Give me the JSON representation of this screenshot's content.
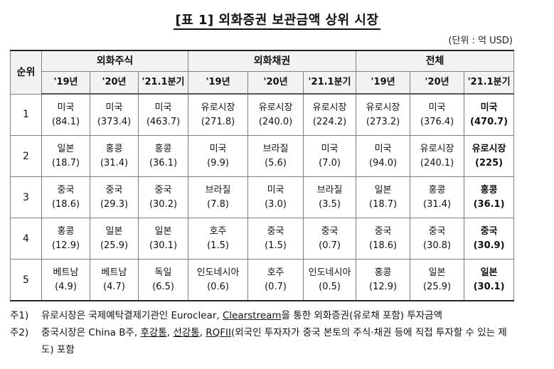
{
  "title": "[표 1] 외화증권 보관금액 상위 시장",
  "unit": "(단위 : 억 USD)",
  "table": {
    "rank_header": "순위",
    "groups": [
      "외화주식",
      "외화채권",
      "전체"
    ],
    "years": [
      "'19년",
      "'20년",
      "'21.1분기",
      "'19년",
      "'20년",
      "'21.1분기",
      "'19년",
      "'20년",
      "'21.1분기"
    ],
    "rows": [
      {
        "rank": "1",
        "cells": [
          {
            "name": "미국",
            "value": "(84.1)"
          },
          {
            "name": "미국",
            "value": "(373.4)"
          },
          {
            "name": "미국",
            "value": "(463.7)"
          },
          {
            "name": "유로시장",
            "value": "(271.8)"
          },
          {
            "name": "유로시장",
            "value": "(240.0)"
          },
          {
            "name": "유로시장",
            "value": "(224.2)"
          },
          {
            "name": "유로시장",
            "value": "(273.2)"
          },
          {
            "name": "미국",
            "value": "(376.4)"
          },
          {
            "name": "미국",
            "value": "(470.7)"
          }
        ]
      },
      {
        "rank": "2",
        "cells": [
          {
            "name": "일본",
            "value": "(18.7)"
          },
          {
            "name": "홍콩",
            "value": "(31.4)"
          },
          {
            "name": "홍콩",
            "value": "(36.1)"
          },
          {
            "name": "미국",
            "value": "(9.9)"
          },
          {
            "name": "브라질",
            "value": "(5.6)"
          },
          {
            "name": "미국",
            "value": "(7.0)"
          },
          {
            "name": "미국",
            "value": "(94.0)"
          },
          {
            "name": "유로시장",
            "value": "(240.1)"
          },
          {
            "name": "유로시장",
            "value": "(225)"
          }
        ]
      },
      {
        "rank": "3",
        "cells": [
          {
            "name": "중국",
            "value": "(18.6)"
          },
          {
            "name": "중국",
            "value": "(29.3)"
          },
          {
            "name": "중국",
            "value": "(30.2)"
          },
          {
            "name": "브라질",
            "value": "(7.8)"
          },
          {
            "name": "미국",
            "value": "(3.0)"
          },
          {
            "name": "브라질",
            "value": "(3.5)"
          },
          {
            "name": "일본",
            "value": "(18.7)"
          },
          {
            "name": "홍콩",
            "value": "(31.4)"
          },
          {
            "name": "홍콩",
            "value": "(36.1)"
          }
        ]
      },
      {
        "rank": "4",
        "cells": [
          {
            "name": "홍콩",
            "value": "(12.9)"
          },
          {
            "name": "일본",
            "value": "(25.9)"
          },
          {
            "name": "일본",
            "value": "(30.1)"
          },
          {
            "name": "호주",
            "value": "(1.5)"
          },
          {
            "name": "중국",
            "value": "(1.5)"
          },
          {
            "name": "중국",
            "value": "(0.7)"
          },
          {
            "name": "중국",
            "value": "(18.6)"
          },
          {
            "name": "중국",
            "value": "(30.8)"
          },
          {
            "name": "중국",
            "value": "(30.9)"
          }
        ]
      },
      {
        "rank": "5",
        "cells": [
          {
            "name": "베트남",
            "value": "(4.9)"
          },
          {
            "name": "베트남",
            "value": "(4.7)"
          },
          {
            "name": "독일",
            "value": "(6.5)"
          },
          {
            "name": "인도네시아",
            "value": "(0.6)"
          },
          {
            "name": "호주",
            "value": "(0.7)"
          },
          {
            "name": "인도네시아",
            "value": "(0.5)"
          },
          {
            "name": "홍콩",
            "value": "(12.9)"
          },
          {
            "name": "일본",
            "value": "(25.9)"
          },
          {
            "name": "일본",
            "value": "(30.1)"
          }
        ]
      }
    ]
  },
  "notes": {
    "note1": {
      "label": "주1)",
      "pre": "유로시장은 국제예탁결제기관인 Euroclear, ",
      "u1": "Clearstream",
      "post": "을 통한 외화증권(유로채 포함) 투자금액"
    },
    "note2": {
      "label": "주2)",
      "pre": "중국시장은 China B주, ",
      "u1": "후강통",
      "sep1": ", ",
      "u2": "선강통",
      "sep2": ", ",
      "u3": "RQFII",
      "post": "(외국인 투자자가 중국 본토의 주식·채권 등에 직접 투자할 수 있는 제도) 포함"
    }
  }
}
